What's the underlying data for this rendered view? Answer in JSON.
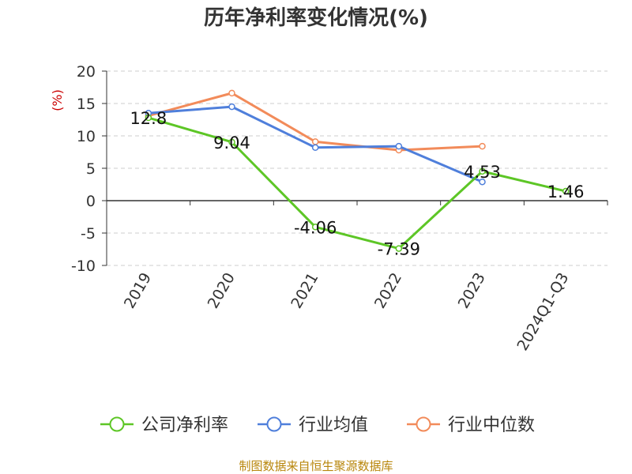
{
  "chart_data": {
    "type": "line",
    "title": "历年净利率变化情况(%)",
    "ylabel": "(%)",
    "xlabel": "",
    "categories": [
      "2019",
      "2020",
      "2021",
      "2022",
      "2023",
      "2024Q1-Q3"
    ],
    "ylim": [
      -10,
      20
    ],
    "yticks": [
      20,
      15,
      10,
      5,
      0,
      -5,
      -10
    ],
    "grid": true,
    "legend_position": "bottom",
    "series": [
      {
        "name": "公司净利率",
        "color": "#5dc626",
        "values": [
          12.8,
          9.04,
          -4.06,
          -7.39,
          4.53,
          1.46
        ],
        "labels": [
          "12.8",
          "9.04",
          "-4.06",
          "-7.39",
          "4.53",
          "1.46"
        ]
      },
      {
        "name": "行业均值",
        "color": "#4f7fdb",
        "values": [
          13.5,
          14.5,
          8.2,
          8.4,
          2.9,
          null
        ]
      },
      {
        "name": "行业中位数",
        "color": "#f28b5a",
        "values": [
          13.1,
          16.6,
          9.1,
          7.8,
          8.4,
          null
        ]
      }
    ]
  },
  "footer": {
    "source": "制图数据来自恒生聚源数据库"
  }
}
